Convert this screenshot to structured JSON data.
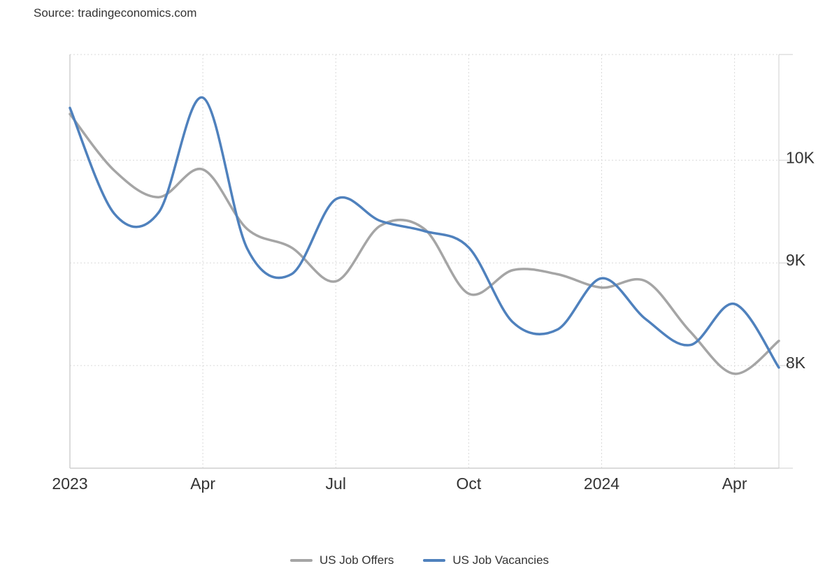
{
  "source": "Source: tradingeconomics.com",
  "colors": {
    "offers": "#a5a5a5",
    "vacancies": "#4f81bd",
    "grid": "#d9d9d9",
    "axis": "#cfcfcf"
  },
  "chart_data": {
    "type": "line",
    "title": "",
    "xlabel": "",
    "ylabel": "",
    "x": [
      "2023-01",
      "2023-02",
      "2023-03",
      "2023-04",
      "2023-05",
      "2023-06",
      "2023-07",
      "2023-08",
      "2023-09",
      "2023-10",
      "2023-11",
      "2023-12",
      "2024-01",
      "2024-02",
      "2024-03",
      "2024-04",
      "2024-05"
    ],
    "x_ticks": [
      {
        "x": "2023-01",
        "label": "2023"
      },
      {
        "x": "2023-04",
        "label": "Apr"
      },
      {
        "x": "2023-07",
        "label": "Jul"
      },
      {
        "x": "2023-10",
        "label": "Oct"
      },
      {
        "x": "2024-01",
        "label": "2024"
      },
      {
        "x": "2024-04",
        "label": "Apr"
      }
    ],
    "y_ticks": [
      {
        "value": 8000,
        "label": "8K"
      },
      {
        "value": 9000,
        "label": "9K"
      },
      {
        "value": 10000,
        "label": "10K"
      }
    ],
    "ylim": [
      7000,
      11030
    ],
    "y_axis_position": "right",
    "grid": true,
    "legend_position": "bottom",
    "series": [
      {
        "name": "US Job Offers",
        "color_key": "offers",
        "values": [
          10450,
          9900,
          9640,
          9910,
          9330,
          9150,
          8820,
          9360,
          9330,
          8700,
          8930,
          8890,
          8760,
          8820,
          8330,
          7920,
          8240
        ]
      },
      {
        "name": "US Job Vacancies",
        "color_key": "vacancies",
        "values": [
          10510,
          9480,
          9490,
          10610,
          9140,
          8890,
          9620,
          9410,
          9310,
          9150,
          8420,
          8350,
          8850,
          8450,
          8200,
          8600,
          7980
        ]
      }
    ]
  }
}
